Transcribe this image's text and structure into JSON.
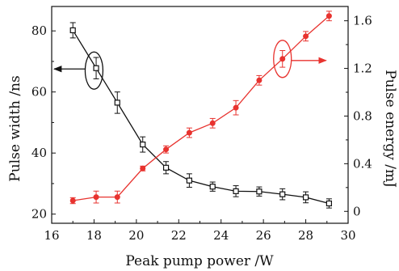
{
  "chart_data": {
    "type": "line",
    "xlabel": "Peak pump power /W",
    "ylabel_left": "Pulse width /ns",
    "ylabel_right": "Pulse energy /mJ",
    "xlim": [
      16,
      30
    ],
    "ylim_left": [
      17,
      88
    ],
    "ylim_right": [
      -0.1,
      1.72
    ],
    "x_ticks": [
      16,
      18,
      20,
      22,
      24,
      26,
      28,
      30
    ],
    "y_ticks_left": [
      20,
      40,
      60,
      80
    ],
    "y_ticks_right": [
      0,
      0.4,
      0.8,
      1.2,
      1.6
    ],
    "y_tick_labels_right": [
      "0",
      "0.4",
      "0.8",
      "1.2",
      "1.6"
    ],
    "grid": false,
    "series": [
      {
        "axis": "left",
        "color": "#111111",
        "marker": "open-square",
        "x": [
          17.0,
          18.1,
          19.1,
          20.3,
          21.4,
          22.5,
          23.6,
          24.7,
          25.8,
          26.9,
          28.0,
          29.1
        ],
        "y": [
          80.2,
          67.8,
          56.5,
          42.8,
          35.2,
          31.0,
          29.0,
          27.5,
          27.4,
          26.5,
          25.5,
          23.5
        ],
        "err": [
          2.5,
          3.5,
          3.5,
          2.5,
          2.0,
          2.2,
          1.5,
          1.8,
          1.5,
          1.8,
          1.8,
          1.5
        ]
      },
      {
        "axis": "right",
        "color": "#e8332f",
        "marker": "filled-circle",
        "x": [
          17.0,
          18.1,
          19.1,
          20.3,
          21.4,
          22.5,
          23.6,
          24.7,
          25.8,
          26.9,
          28.0,
          29.1
        ],
        "y": [
          0.09,
          0.12,
          0.12,
          0.36,
          0.52,
          0.66,
          0.74,
          0.87,
          1.1,
          1.28,
          1.47,
          1.64
        ],
        "err": [
          0.025,
          0.05,
          0.05,
          0.02,
          0.03,
          0.04,
          0.04,
          0.06,
          0.04,
          0.07,
          0.04,
          0.04
        ]
      }
    ],
    "annotations": [
      {
        "type": "ellipse",
        "color": "#111111",
        "cx": 18.0,
        "cy_left": 67.0,
        "arrow": "left"
      },
      {
        "type": "ellipse",
        "color": "#e8332f",
        "cx": 26.9,
        "cy_right": 1.28,
        "arrow": "right"
      }
    ]
  }
}
